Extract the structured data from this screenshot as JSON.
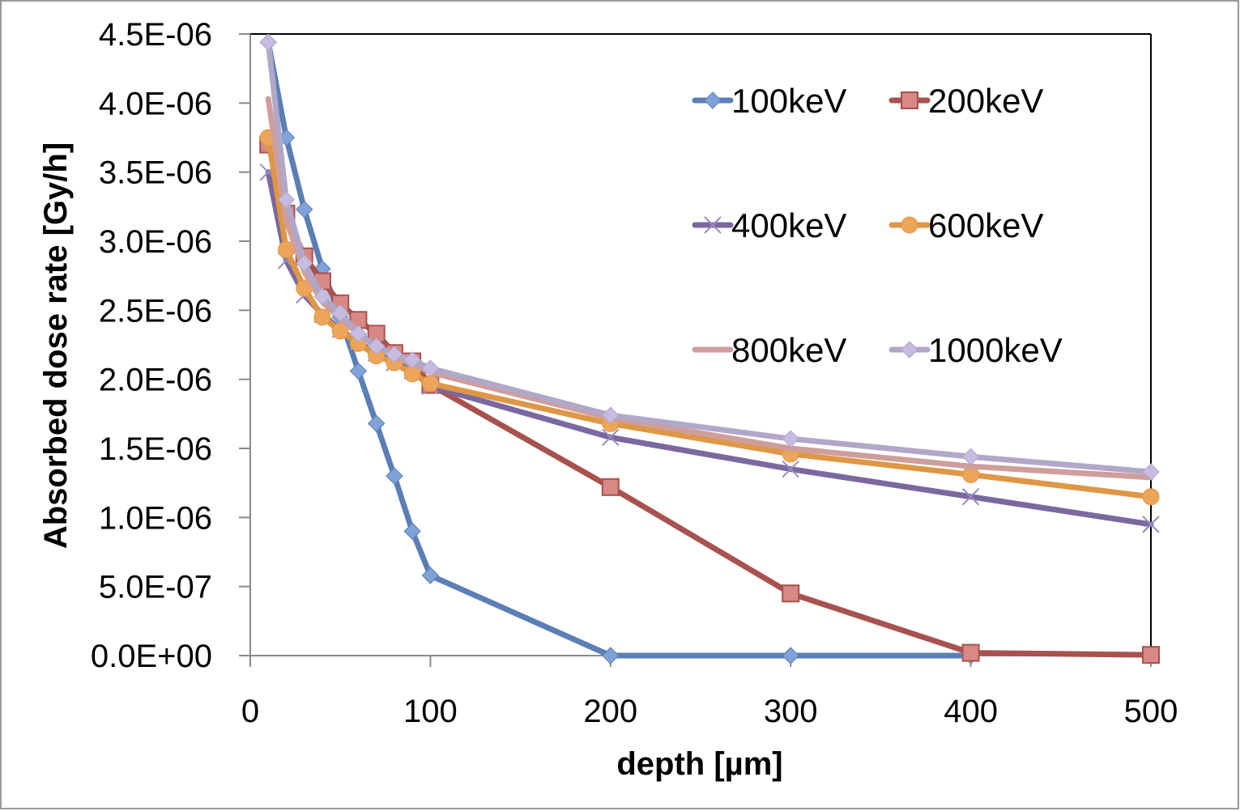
{
  "chart_data": {
    "type": "line",
    "title": "",
    "xlabel": "depth [µm]",
    "ylabel": "Absorbed dose rate [Gy/h]",
    "xlim": [
      0,
      500
    ],
    "ylim": [
      0,
      4.5e-06
    ],
    "x_ticks": [
      0,
      100,
      200,
      300,
      400,
      500
    ],
    "x_tick_labels": [
      "0",
      "100",
      "200",
      "300",
      "400",
      "500"
    ],
    "y_ticks": [
      0,
      5e-07,
      1e-06,
      1.5e-06,
      2e-06,
      2.5e-06,
      3e-06,
      3.5e-06,
      4e-06,
      4.5e-06
    ],
    "y_tick_labels": [
      "0.0E+00",
      "5.0E-07",
      "1.0E-06",
      "1.5E-06",
      "2.0E-06",
      "2.5E-06",
      "3.0E-06",
      "3.5E-06",
      "4.0E-06",
      "4.5E-06"
    ],
    "grid": false,
    "legend_position": "top-right",
    "series": [
      {
        "name": "100keV",
        "color": "#5b7fb5",
        "marker": "diamond",
        "marker_color": "#7fa3d8",
        "x": [
          10,
          20,
          30,
          40,
          50,
          60,
          70,
          80,
          90,
          100,
          200,
          300,
          400
        ],
        "values": [
          4.44e-06,
          3.75e-06,
          3.23e-06,
          2.8e-06,
          2.45e-06,
          2.06e-06,
          1.68e-06,
          1.3e-06,
          9e-07,
          5.8e-07,
          0,
          0,
          0
        ]
      },
      {
        "name": "200keV",
        "color": "#a8524f",
        "marker": "square",
        "marker_color": "#d68985",
        "x": [
          10,
          20,
          30,
          40,
          50,
          60,
          70,
          80,
          90,
          100,
          200,
          300,
          400,
          500
        ],
        "values": [
          3.7e-06,
          3.2e-06,
          2.89e-06,
          2.71e-06,
          2.55e-06,
          2.43e-06,
          2.33e-06,
          2.19e-06,
          2.13e-06,
          1.96e-06,
          1.22e-06,
          4.5e-07,
          2e-08,
          5e-09
        ]
      },
      {
        "name": "400keV",
        "color": "#7b68a0",
        "marker": "x",
        "marker_color": "#9a8cc0",
        "x": [
          10,
          20,
          30,
          40,
          50,
          60,
          70,
          80,
          90,
          100,
          200,
          300,
          400,
          500
        ],
        "values": [
          3.5e-06,
          2.86e-06,
          2.61e-06,
          2.47e-06,
          2.36e-06,
          2.27e-06,
          2.19e-06,
          2.12e-06,
          2.06e-06,
          1.95e-06,
          1.58e-06,
          1.35e-06,
          1.15e-06,
          9.5e-07
        ]
      },
      {
        "name": "600keV",
        "color": "#de9746",
        "marker": "circle",
        "marker_color": "#eda55a",
        "x": [
          10,
          20,
          30,
          40,
          50,
          60,
          70,
          80,
          90,
          100,
          200,
          300,
          400,
          500
        ],
        "values": [
          3.75e-06,
          2.94e-06,
          2.66e-06,
          2.45e-06,
          2.35e-06,
          2.26e-06,
          2.17e-06,
          2.12e-06,
          2.04e-06,
          1.97e-06,
          1.68e-06,
          1.46e-06,
          1.31e-06,
          1.15e-06
        ]
      },
      {
        "name": "800keV",
        "color": "#cf9e9c",
        "marker": "none",
        "marker_color": "#cf9e9c",
        "x": [
          10,
          20,
          30,
          40,
          50,
          60,
          70,
          80,
          90,
          100,
          200,
          300,
          400,
          500
        ],
        "values": [
          4.03e-06,
          3.15e-06,
          2.78e-06,
          2.56e-06,
          2.44e-06,
          2.33e-06,
          2.24e-06,
          2.17e-06,
          2.11e-06,
          2.05e-06,
          1.72e-06,
          1.5e-06,
          1.37e-06,
          1.29e-06
        ]
      },
      {
        "name": "1000keV",
        "color": "#b1a8c9",
        "marker": "diamond",
        "marker_color": "#c6bbe0",
        "x": [
          10,
          20,
          30,
          40,
          50,
          60,
          70,
          80,
          90,
          100,
          200,
          300,
          400,
          500
        ],
        "values": [
          4.44e-06,
          3.3e-06,
          2.84e-06,
          2.6e-06,
          2.48e-06,
          2.33e-06,
          2.24e-06,
          2.18e-06,
          2.14e-06,
          2.08e-06,
          1.74e-06,
          1.57e-06,
          1.44e-06,
          1.33e-06
        ]
      }
    ]
  }
}
